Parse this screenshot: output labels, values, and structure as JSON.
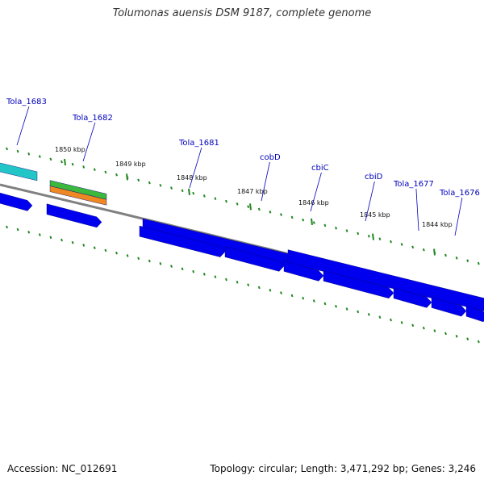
{
  "title": "Tolumonas auensis DSM 9187, complete genome",
  "footer": {
    "accession": "Accession: NC_012691",
    "summary": "Topology: circular; Length: 3,471,292 bp; Genes: 3,246"
  },
  "colors": {
    "cds_blue": "#0000ee",
    "gene_cyan": "#22c6c6",
    "gene_green": "#3cb83c",
    "gene_orange": "#ee8822",
    "backbone": "#808080",
    "tick_green": "#228822",
    "label_blue": "#0000bb"
  },
  "scale_labels": [
    "1850 kbp",
    "1849 kbp",
    "1848 kbp",
    "1847 kbp",
    "1846 kbp",
    "1845 kbp",
    "1844 kbp"
  ],
  "gene_labels": [
    "Tola_1683",
    "Tola_1682",
    "Tola_1681",
    "cobD",
    "cbiC",
    "cbiD",
    "Tola_1677",
    "Tola_1676"
  ]
}
